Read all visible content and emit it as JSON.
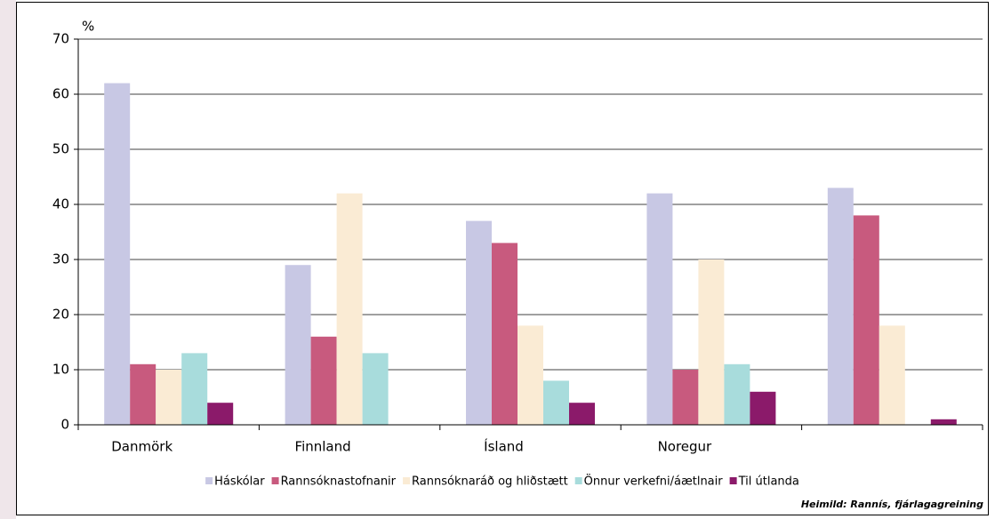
{
  "chart_data": {
    "type": "bar",
    "y_label": "%",
    "categories": [
      "Danmörk",
      "Finnland",
      "Ísland",
      "Noregur",
      null
    ],
    "series": [
      {
        "name": "Háskólar",
        "color": "#c8c8e4",
        "values": [
          62,
          29,
          37,
          42,
          43
        ]
      },
      {
        "name": "Rannsóknastofnanir",
        "color": "#c85a7e",
        "values": [
          11,
          16,
          33,
          10,
          38
        ]
      },
      {
        "name": "Rannsóknaráð og hliðstætt",
        "color": "#faebd4",
        "values": [
          10,
          42,
          18,
          30,
          18
        ]
      },
      {
        "name": "Önnur verkefni/áætlnair",
        "color": "#a8dcdc",
        "values": [
          13,
          13,
          8,
          11,
          0
        ]
      },
      {
        "name": "Til útlanda",
        "color": "#8b1a6a",
        "values": [
          4,
          0,
          4,
          6,
          1
        ]
      }
    ],
    "ylim": [
      0,
      70
    ],
    "yticks": [
      0,
      10,
      20,
      30,
      40,
      50,
      60,
      70
    ],
    "grid": true,
    "legend": "bottom",
    "source": "Heimild: Rannís, fjárlagagreining"
  }
}
